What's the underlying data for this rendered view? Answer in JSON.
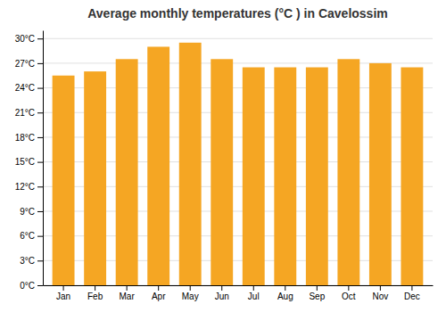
{
  "chart_data": {
    "type": "bar",
    "title": "Average monthly temperatures (°C ) in Cavelossim",
    "categories": [
      "Jan",
      "Feb",
      "Mar",
      "Apr",
      "May",
      "Jun",
      "Jul",
      "Aug",
      "Sep",
      "Oct",
      "Nov",
      "Dec"
    ],
    "values": [
      25.5,
      26.0,
      27.5,
      29.0,
      29.5,
      27.5,
      26.5,
      26.5,
      26.5,
      27.5,
      27.0,
      26.5
    ],
    "color": "#F5A623",
    "ylim": [
      0,
      31
    ],
    "yticks": [
      {
        "value": 0,
        "label": "0°C"
      },
      {
        "value": 3,
        "label": "3°C"
      },
      {
        "value": 6,
        "label": "6°C"
      },
      {
        "value": 9,
        "label": "9°C"
      },
      {
        "value": 12,
        "label": "12°C"
      },
      {
        "value": 15,
        "label": "15°C"
      },
      {
        "value": 18,
        "label": "18°C"
      },
      {
        "value": 21,
        "label": "21°C"
      },
      {
        "value": 24,
        "label": "24°C"
      },
      {
        "value": 27,
        "label": "27°C"
      },
      {
        "value": 30,
        "label": "30°C"
      }
    ],
    "grid": true
  }
}
